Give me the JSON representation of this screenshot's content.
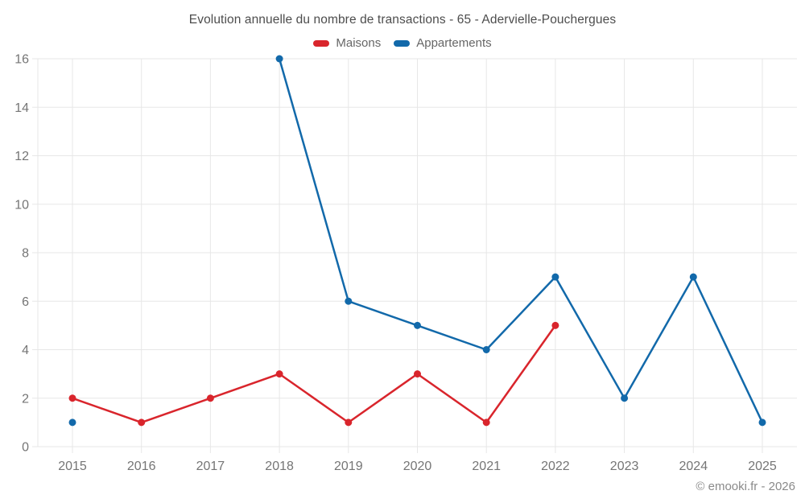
{
  "title": "Evolution annuelle du nombre de transactions - 65 - Adervielle-Pouchergues",
  "footer": "© emooki.fr - 2026",
  "chart_data": {
    "type": "line",
    "title": "Evolution annuelle du nombre de transactions - 65 - Adervielle-Pouchergues",
    "categories": [
      "2015",
      "2016",
      "2017",
      "2018",
      "2019",
      "2020",
      "2021",
      "2022",
      "2023",
      "2024",
      "2025"
    ],
    "series": [
      {
        "name": "Maisons",
        "color": "#d9252c",
        "values": [
          2,
          1,
          2,
          3,
          1,
          3,
          1,
          5,
          null,
          null,
          null
        ]
      },
      {
        "name": "Appartements",
        "color": "#1269aa",
        "values": [
          1,
          null,
          null,
          16,
          6,
          5,
          4,
          7,
          2,
          7,
          1
        ]
      }
    ],
    "xlabel": "",
    "ylabel": "",
    "ylim": [
      0,
      16
    ],
    "ytick_step": 2,
    "grid": true,
    "legend_position": "top",
    "colors": {
      "grid": "#e7e7e7",
      "tick_text": "#757575",
      "title_text": "#4d4d4d",
      "legend_text": "#666666",
      "footer_text": "#8a8a8a",
      "background": "#ffffff"
    }
  }
}
